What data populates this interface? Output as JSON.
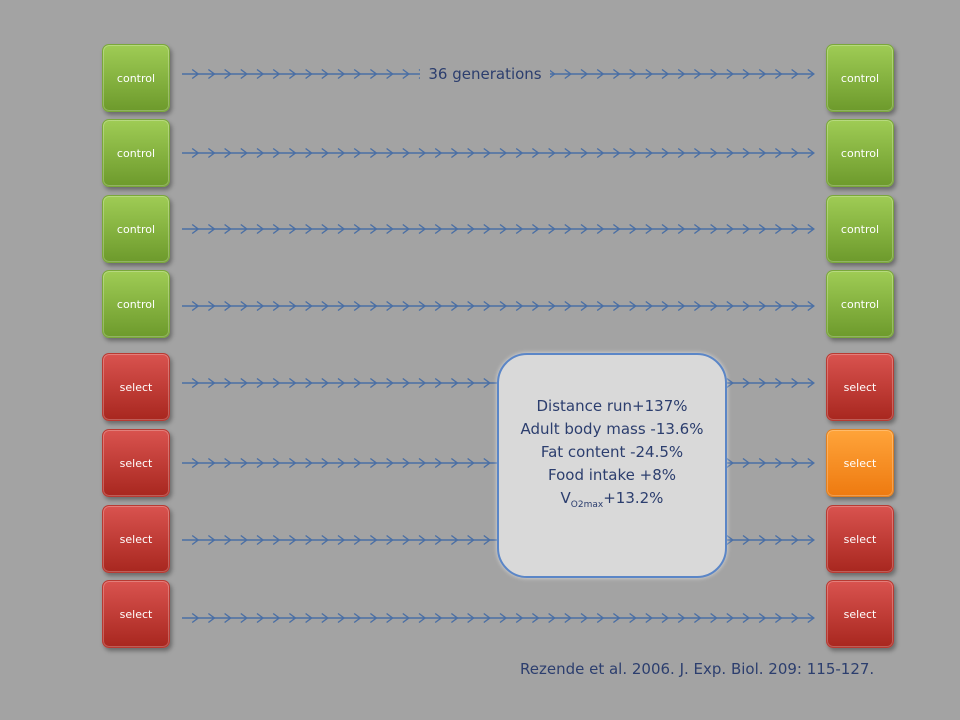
{
  "generations_label": "36 generations",
  "left_column": [
    {
      "label": "control",
      "color": "#7db53c"
    },
    {
      "label": "control",
      "color": "#7db53c"
    },
    {
      "label": "control",
      "color": "#7db53c"
    },
    {
      "label": "control",
      "color": "#7db53c"
    },
    {
      "label": "select",
      "color": "#c0392b"
    },
    {
      "label": "select",
      "color": "#c0392b"
    },
    {
      "label": "select",
      "color": "#c0392b"
    },
    {
      "label": "select",
      "color": "#c0392b"
    }
  ],
  "right_column": [
    {
      "label": "control",
      "color": "#7db53c"
    },
    {
      "label": "control",
      "color": "#7db53c"
    },
    {
      "label": "control",
      "color": "#7db53c"
    },
    {
      "label": "control",
      "color": "#7db53c"
    },
    {
      "label": "select",
      "color": "#c0392b"
    },
    {
      "label": "select",
      "color": "#f5901e"
    },
    {
      "label": "select",
      "color": "#c0392b"
    },
    {
      "label": "select",
      "color": "#c0392b"
    }
  ],
  "summary": {
    "line1": "Distance run+137%",
    "line2": "Adult body mass -13.6%",
    "line3": "Fat content -24.5%",
    "line4": "Food intake +8%",
    "line5_main": "V",
    "line5_sub": "O2max",
    "line5_rest": "+13.2%"
  },
  "citation": "Rezende et al. 2006. J. Exp. Biol. 209: 115-127.",
  "colors": {
    "background": "#a3a3a3",
    "arrow": "#4a6fa5",
    "text": "#2c3e6e",
    "summary_border": "#5b86c7"
  }
}
